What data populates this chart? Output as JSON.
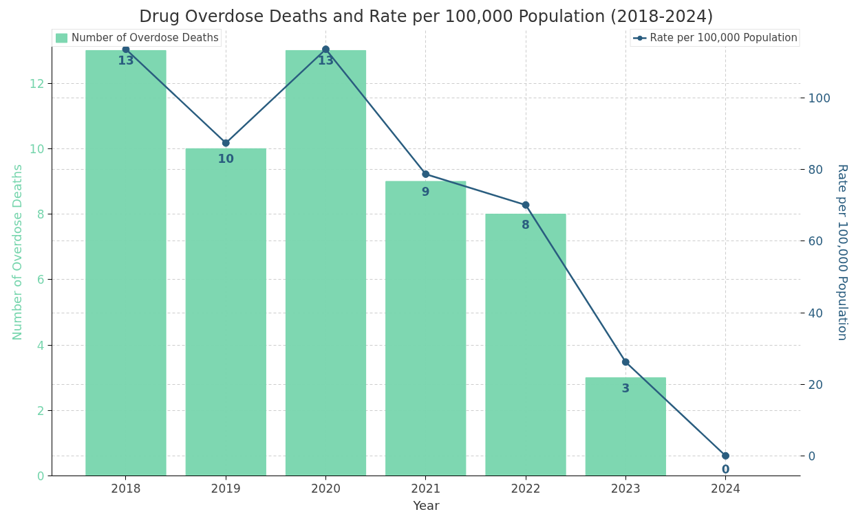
{
  "chart_data": {
    "type": "bar",
    "title": "Drug Overdose Deaths and Rate per 100,000 Population (2018-2024)",
    "xlabel": "Year",
    "ylabel": "Number of Overdose Deaths",
    "y2label": "Rate per 100,000 Population",
    "categories": [
      "2018",
      "2019",
      "2020",
      "2021",
      "2022",
      "2023",
      "2024"
    ],
    "series": [
      {
        "name": "Number of Overdose Deaths",
        "color": "#77d5ad",
        "values": [
          13,
          10,
          13,
          9,
          8,
          3,
          0
        ],
        "value_labels": [
          "13",
          "10",
          "13",
          "9",
          "8",
          "3",
          "0"
        ]
      },
      {
        "name": "Rate per 100,000 Population",
        "type": "line",
        "axis": "y2",
        "color": "#2a5d7f",
        "values": [
          113.6,
          87.4,
          113.6,
          78.7,
          70.1,
          26.2,
          0
        ]
      }
    ],
    "ylim": [
      0,
      13.65
    ],
    "yticks": [
      0,
      2,
      4,
      6,
      8,
      10,
      12
    ],
    "y2lim": [
      -5.6,
      119.2
    ],
    "y2ticks": [
      0,
      20,
      40,
      60,
      80,
      100
    ],
    "grid": true,
    "legend": "top",
    "marker": "circle",
    "line_style": "solid"
  }
}
